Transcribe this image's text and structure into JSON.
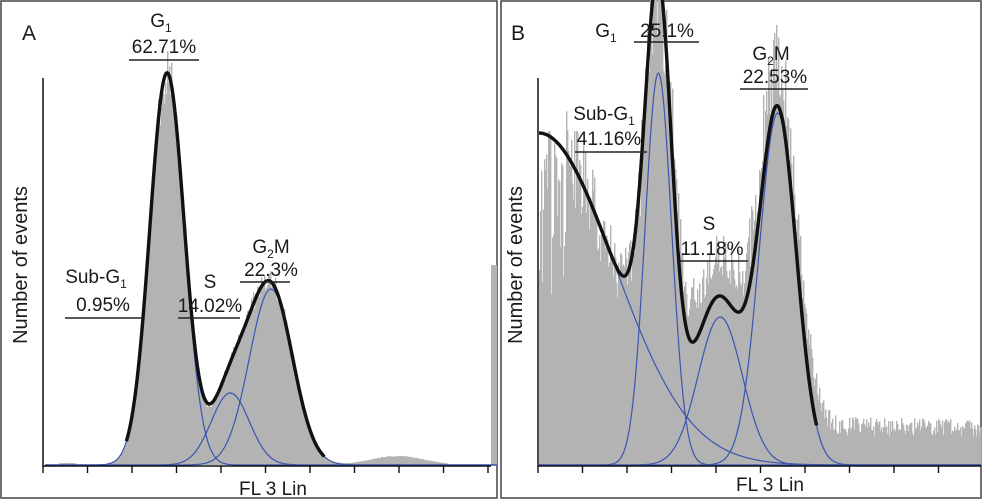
{
  "figure": {
    "panels": [
      {
        "letter": "A",
        "ylabel": "Number of events",
        "xlabel": "FL 3 Lin",
        "gates": [
          {
            "name": "G1",
            "name_base": "G",
            "name_sub": "1",
            "name_tail": "",
            "percent": "62.71%"
          },
          {
            "name": "Sub-G1",
            "name_base": "Sub-G",
            "name_sub": "1",
            "name_tail": "",
            "percent": "0.95%"
          },
          {
            "name": "S",
            "name_base": "S",
            "name_sub": "",
            "name_tail": "",
            "percent": "14.02%"
          },
          {
            "name": "G2M",
            "name_base": "G",
            "name_sub": "2",
            "name_tail": "M",
            "percent": "22.3%"
          }
        ]
      },
      {
        "letter": "B",
        "ylabel": "Number of events",
        "xlabel": "FL 3 Lin",
        "gates": [
          {
            "name": "G1",
            "name_base": "G",
            "name_sub": "1",
            "name_tail": "",
            "percent": "25.1%"
          },
          {
            "name": "Sub-G1",
            "name_base": "Sub-G",
            "name_sub": "1",
            "name_tail": "",
            "percent": "41.16%"
          },
          {
            "name": "S",
            "name_base": "S",
            "name_sub": "",
            "name_tail": "",
            "percent": "11.18%"
          },
          {
            "name": "G2M",
            "name_base": "G",
            "name_sub": "2",
            "name_tail": "M",
            "percent": "22.53%"
          }
        ]
      }
    ]
  },
  "colors": {
    "histogram": "#b3b3b3",
    "fit_total": "#111111",
    "fit_component": "#3a55b0",
    "frame": "#444444",
    "text": "#1a1a1a"
  },
  "chart_data": [
    {
      "panel": "A",
      "type": "area",
      "xlabel": "FL 3 Lin",
      "ylabel": "Number of events",
      "xlim": [
        0,
        100
      ],
      "ylim": [
        0,
        100
      ],
      "x_ticks": 10,
      "grid": false,
      "histogram_noise": 0.07,
      "population_fit": [
        {
          "name": "Sub-G1",
          "center": 5,
          "width": 3.0,
          "height": 0.5
        },
        {
          "name": "G1",
          "center": 27,
          "width": 3.8,
          "height": 98
        },
        {
          "name": "S",
          "center": 41,
          "width": 4.2,
          "height": 18
        },
        {
          "name": "G2M",
          "center": 50,
          "width": 4.8,
          "height": 44
        },
        {
          "name": "debris",
          "center": 78,
          "width": 6.0,
          "height": 2.2
        }
      ],
      "fit_components": [
        "G1",
        "S",
        "G2M"
      ],
      "tail_level": 0,
      "last_bin_spike": 50
    },
    {
      "panel": "B",
      "type": "area",
      "xlabel": "FL 3 Lin",
      "ylabel": "Number of events",
      "xlim": [
        0,
        100
      ],
      "ylim": [
        0,
        100
      ],
      "x_ticks": 10,
      "grid": false,
      "histogram_noise": 0.15,
      "population_fit": [
        {
          "name": "Sub-G1",
          "center": 0,
          "width": 17,
          "height": 83
        },
        {
          "name": "G1",
          "center": 27,
          "width": 3.0,
          "height": 98
        },
        {
          "name": "S",
          "center": 41,
          "width": 5.0,
          "height": 37
        },
        {
          "name": "G2M",
          "center": 54,
          "width": 4.2,
          "height": 88
        }
      ],
      "fit_components": [
        "Sub-G1",
        "G1",
        "S",
        "G2M"
      ],
      "tail_level": 12,
      "last_bin_spike": 0
    }
  ]
}
